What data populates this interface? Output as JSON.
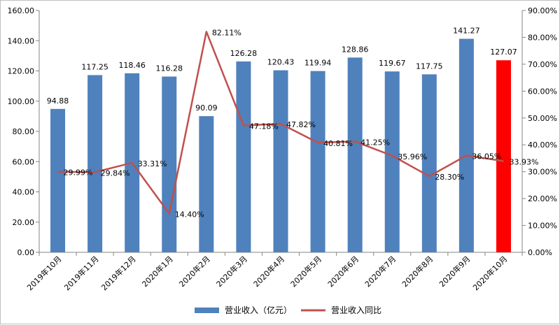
{
  "chart_data": {
    "type": "bar",
    "categories": [
      "2019年10月",
      "2019年11月",
      "2019年12月",
      "2020年1月",
      "2020年2月",
      "2020年3月",
      "2020年4月",
      "2020年5月",
      "2020年6月",
      "2020年7月",
      "2020年8月",
      "2020年9月",
      "2020年10月"
    ],
    "series": [
      {
        "name": "营业收入（亿元）",
        "type": "bar",
        "axis": "left",
        "color": "#4f81bd",
        "highlight_color": "#ff0000",
        "highlight_index": 12,
        "values": [
          94.88,
          117.25,
          118.46,
          116.28,
          90.09,
          126.28,
          120.43,
          119.94,
          128.86,
          119.67,
          117.75,
          141.27,
          127.07
        ],
        "labels": [
          "94.88",
          "117.25",
          "118.46",
          "116.28",
          "90.09",
          "126.28",
          "120.43",
          "119.94",
          "128.86",
          "119.67",
          "117.75",
          "141.27",
          "127.07"
        ]
      },
      {
        "name": "营业收入同比",
        "type": "line",
        "axis": "right",
        "color": "#c0504d",
        "values": [
          29.99,
          29.84,
          33.31,
          14.4,
          82.11,
          47.18,
          47.82,
          40.81,
          41.25,
          35.96,
          28.3,
          36.05,
          33.93
        ],
        "labels": [
          "29.99%",
          "29.84%",
          "33.31%",
          "14.40%",
          "82.11%",
          "47.18%",
          "47.82%",
          "40.81%",
          "41.25%",
          "35.96%",
          "28.30%",
          "36.05%",
          "33.93%"
        ]
      }
    ],
    "y_left": {
      "range": [
        0,
        160
      ],
      "ticks": [
        "0.00",
        "20.00",
        "40.00",
        "60.00",
        "80.00",
        "100.00",
        "120.00",
        "140.00",
        "160.00"
      ]
    },
    "y_right": {
      "range": [
        0,
        90
      ],
      "ticks": [
        "0.00%",
        "10.00%",
        "20.00%",
        "30.00%",
        "40.00%",
        "50.00%",
        "60.00%",
        "70.00%",
        "80.00%",
        "90.00%"
      ]
    },
    "grid": false,
    "legend": "bottom"
  }
}
